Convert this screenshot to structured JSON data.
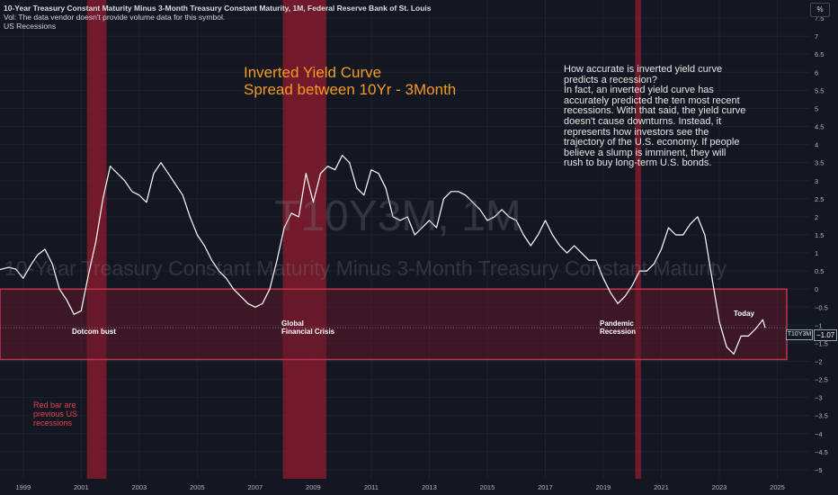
{
  "header": {
    "title": "10-Year Treasury Constant Maturity Minus 3-Month Treasury Constant Maturity, 1M, Federal Reserve Bank of St. Louis",
    "vol_note": "Vol: The data vendor doesn't provide volume data for this symbol.",
    "recessions_label": "US Recessions",
    "scale_button": "%"
  },
  "overlay": {
    "title_line1": "Inverted Yield Curve",
    "title_line2": "Spread between 10Yr - 3Month",
    "note_lines": [
      "How accurate is inverted yield curve",
      "predicts a recession?",
      "In fact, an inverted yield curve has",
      "accurately predicted the ten most recent",
      "recessions. With that said, the yield curve",
      "doesn't cause downturns. Instead, it",
      "represents how investors see the",
      "trajectory of the U.S. economy. If people",
      "believe a slump is imminent, they will",
      "rush to buy long-term U.S. bonds."
    ],
    "red_note_lines": [
      "Red bar are",
      "previous US",
      "recessions"
    ],
    "watermark_symbol": "T10Y3M, 1M",
    "watermark_desc": "10-Year Treasury Constant Maturity Minus 3-Month Treasury Constant Maturity",
    "annotations": {
      "dotcom": "Dotcom bust",
      "gfc_line1": "Global",
      "gfc_line2": "Financial Crisis",
      "pandemic_line1": "Pandemic",
      "pandemic_line2": "Recession",
      "today": "Today"
    },
    "current_tag": "T10Y3M",
    "current_value": "−1.07"
  },
  "colors": {
    "background": "#131722",
    "line": "#ffffff",
    "recession": "#8a1c2e",
    "inversion_zone": "#5e1a2b",
    "title": "#f59a23",
    "red_note": "#e0424f"
  },
  "chart_data": {
    "type": "line",
    "x_unit": "year",
    "xlim": [
      1998.2,
      2026.1
    ],
    "ylim": [
      -5.25,
      8.0
    ],
    "y_ticks": [
      -5,
      -4.5,
      -4,
      -3.5,
      -3,
      -2.5,
      -2,
      -1.5,
      -1,
      -0.5,
      0,
      0.5,
      1,
      1.5,
      2,
      2.5,
      3,
      3.5,
      4,
      4.5,
      5,
      5.5,
      6,
      6.5,
      7,
      7.5
    ],
    "y_tick_labels": [
      "−5",
      "−4.5",
      "−4",
      "−3.5",
      "−3",
      "−2.5",
      "−2",
      "−1.5",
      "−1",
      "−0.5",
      "0",
      "0.5",
      "1",
      "1.5",
      "2",
      "2.5",
      "3",
      "3.5",
      "4",
      "4.5",
      "5",
      "5.5",
      "6",
      "6.5",
      "7",
      "7.5"
    ],
    "x_ticks": [
      1999,
      2001,
      2003,
      2005,
      2007,
      2009,
      2011,
      2013,
      2015,
      2017,
      2019,
      2021,
      2023,
      2025
    ],
    "x_tick_labels": [
      "1999",
      "2001",
      "2003",
      "2005",
      "2007",
      "2009",
      "2011",
      "2013",
      "2015",
      "2017",
      "2019",
      "2021",
      "2023",
      "2025"
    ],
    "recessions": [
      [
        2001.2,
        2001.87
      ],
      [
        2007.95,
        2009.45
      ],
      [
        2020.1,
        2020.3
      ]
    ],
    "inversion_band": [
      -1.95,
      0.0
    ],
    "series": [
      {
        "values": [
          [
            1998.0,
            0.5
          ],
          [
            1998.25,
            0.55
          ],
          [
            1998.5,
            0.6
          ],
          [
            1998.75,
            0.55
          ],
          [
            1999.0,
            0.3
          ],
          [
            1999.25,
            0.65
          ],
          [
            1999.5,
            0.95
          ],
          [
            1999.75,
            1.1
          ],
          [
            2000.0,
            0.7
          ],
          [
            2000.25,
            0.0
          ],
          [
            2000.5,
            -0.3
          ],
          [
            2000.75,
            -0.7
          ],
          [
            2001.0,
            -0.6
          ],
          [
            2001.25,
            0.4
          ],
          [
            2001.5,
            1.3
          ],
          [
            2001.75,
            2.5
          ],
          [
            2002.0,
            3.4
          ],
          [
            2002.25,
            3.2
          ],
          [
            2002.5,
            3.0
          ],
          [
            2002.75,
            2.7
          ],
          [
            2003.0,
            2.6
          ],
          [
            2003.25,
            2.4
          ],
          [
            2003.5,
            3.2
          ],
          [
            2003.75,
            3.5
          ],
          [
            2004.0,
            3.2
          ],
          [
            2004.25,
            2.9
          ],
          [
            2004.5,
            2.6
          ],
          [
            2004.75,
            2.0
          ],
          [
            2005.0,
            1.5
          ],
          [
            2005.25,
            1.2
          ],
          [
            2005.5,
            0.8
          ],
          [
            2005.75,
            0.5
          ],
          [
            2006.0,
            0.3
          ],
          [
            2006.25,
            0.0
          ],
          [
            2006.5,
            -0.2
          ],
          [
            2006.75,
            -0.4
          ],
          [
            2007.0,
            -0.5
          ],
          [
            2007.25,
            -0.4
          ],
          [
            2007.5,
            0.0
          ],
          [
            2007.75,
            0.8
          ],
          [
            2008.0,
            1.7
          ],
          [
            2008.25,
            2.1
          ],
          [
            2008.5,
            2.0
          ],
          [
            2008.75,
            3.2
          ],
          [
            2009.0,
            2.4
          ],
          [
            2009.25,
            3.2
          ],
          [
            2009.5,
            3.4
          ],
          [
            2009.75,
            3.3
          ],
          [
            2010.0,
            3.7
          ],
          [
            2010.25,
            3.5
          ],
          [
            2010.5,
            2.8
          ],
          [
            2010.75,
            2.6
          ],
          [
            2011.0,
            3.3
          ],
          [
            2011.25,
            3.2
          ],
          [
            2011.5,
            2.8
          ],
          [
            2011.75,
            2.0
          ],
          [
            2012.0,
            1.9
          ],
          [
            2012.25,
            2.0
          ],
          [
            2012.5,
            1.5
          ],
          [
            2012.75,
            1.7
          ],
          [
            2013.0,
            1.9
          ],
          [
            2013.25,
            1.7
          ],
          [
            2013.5,
            2.5
          ],
          [
            2013.75,
            2.7
          ],
          [
            2014.0,
            2.7
          ],
          [
            2014.25,
            2.6
          ],
          [
            2014.5,
            2.4
          ],
          [
            2014.75,
            2.2
          ],
          [
            2015.0,
            1.9
          ],
          [
            2015.25,
            2.0
          ],
          [
            2015.5,
            2.2
          ],
          [
            2015.75,
            2.0
          ],
          [
            2016.0,
            1.9
          ],
          [
            2016.25,
            1.5
          ],
          [
            2016.5,
            1.2
          ],
          [
            2016.75,
            1.5
          ],
          [
            2017.0,
            1.9
          ],
          [
            2017.25,
            1.5
          ],
          [
            2017.5,
            1.2
          ],
          [
            2017.75,
            1.0
          ],
          [
            2018.0,
            1.2
          ],
          [
            2018.25,
            1.0
          ],
          [
            2018.5,
            0.8
          ],
          [
            2018.75,
            0.8
          ],
          [
            2019.0,
            0.3
          ],
          [
            2019.25,
            -0.1
          ],
          [
            2019.5,
            -0.4
          ],
          [
            2019.75,
            -0.2
          ],
          [
            2020.0,
            0.1
          ],
          [
            2020.25,
            0.5
          ],
          [
            2020.5,
            0.5
          ],
          [
            2020.75,
            0.7
          ],
          [
            2021.0,
            1.1
          ],
          [
            2021.25,
            1.7
          ],
          [
            2021.5,
            1.5
          ],
          [
            2021.75,
            1.5
          ],
          [
            2022.0,
            1.8
          ],
          [
            2022.25,
            2.0
          ],
          [
            2022.5,
            1.5
          ],
          [
            2022.75,
            0.3
          ],
          [
            2023.0,
            -0.9
          ],
          [
            2023.25,
            -1.6
          ],
          [
            2023.5,
            -1.8
          ],
          [
            2023.75,
            -1.3
          ],
          [
            2024.0,
            -1.3
          ],
          [
            2024.25,
            -1.1
          ],
          [
            2024.5,
            -0.85
          ],
          [
            2024.58,
            -1.07
          ]
        ]
      }
    ]
  }
}
